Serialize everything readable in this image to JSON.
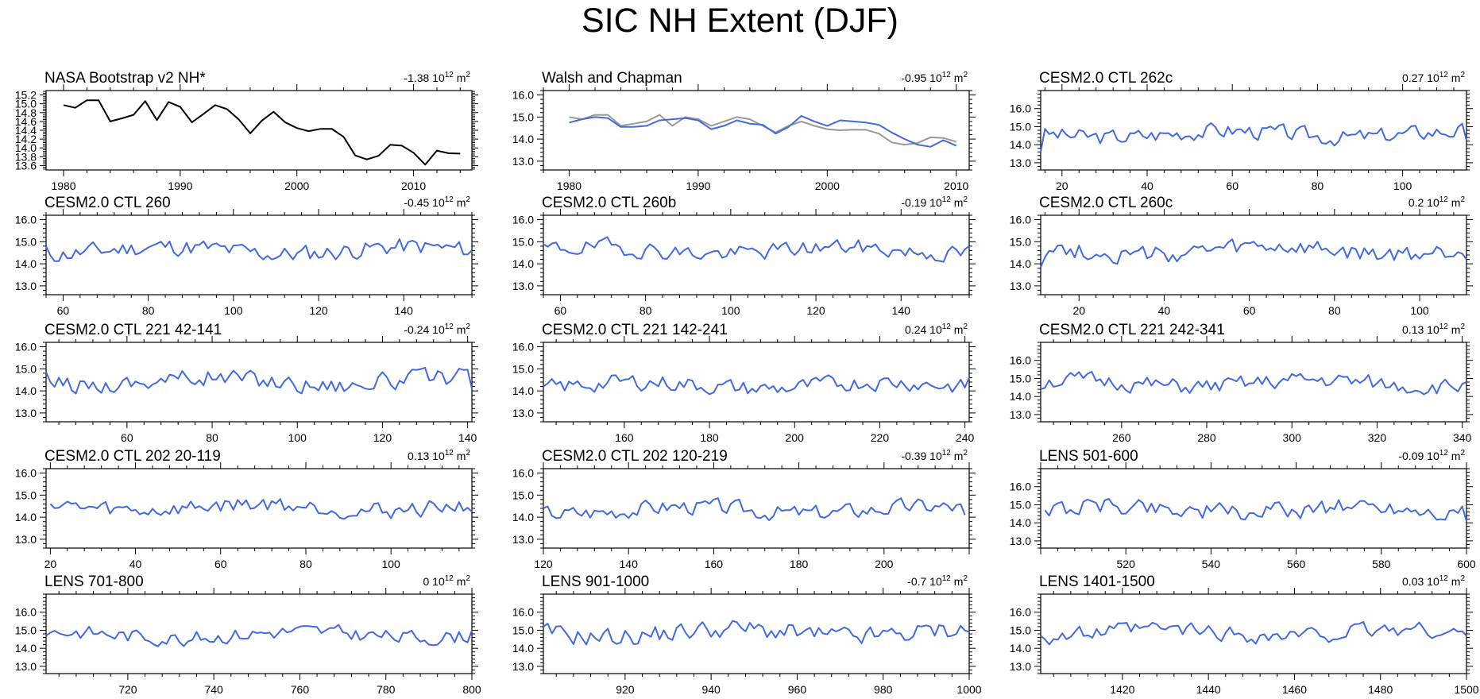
{
  "title": "SIC NH Extent (DJF)",
  "trend_unit": "10",
  "trend_exp": "12",
  "trend_suffix": "m",
  "trend_suffix_exp": "2",
  "colors": {
    "model": "#4169e1",
    "observed": "#000000",
    "reference": "#999999"
  },
  "chart_data": [
    {
      "type": "line",
      "title": "NASA Bootstrap v2 NH*",
      "trend": "-1.38",
      "xlim": [
        1978.5,
        2015
      ],
      "ylim": [
        13.5,
        15.3
      ],
      "xticks": [
        1980,
        1990,
        2000,
        2010
      ],
      "yticks": [
        "15.2",
        "15.0",
        "14.8",
        "14.6",
        "14.4",
        "14.2",
        "14.0",
        "13.8",
        "13.6"
      ],
      "series": [
        {
          "x": [
            1980,
            1981,
            1982,
            1983,
            1984,
            1985,
            1986,
            1987,
            1988,
            1989,
            1990,
            1991,
            1992,
            1993,
            1994,
            1995,
            1996,
            1997,
            1998,
            1999,
            2000,
            2001,
            2002,
            2003,
            2004,
            2005,
            2006,
            2007,
            2008,
            2009,
            2010,
            2011,
            2012,
            2013,
            2014
          ],
          "y": [
            14.97,
            14.91,
            15.08,
            15.08,
            14.6,
            14.67,
            14.75,
            15.06,
            14.63,
            15.04,
            14.93,
            14.58,
            14.77,
            14.97,
            14.88,
            14.65,
            14.33,
            14.62,
            14.82,
            14.58,
            14.45,
            14.38,
            14.43,
            14.43,
            14.25,
            13.83,
            13.74,
            13.82,
            14.07,
            14.05,
            13.89,
            13.62,
            13.94,
            13.88,
            13.87
          ],
          "color": "#000000"
        }
      ]
    },
    {
      "type": "line",
      "title": "Walsh and Chapman",
      "trend": "-0.95",
      "xlim": [
        1978,
        2011
      ],
      "ylim": [
        12.6,
        16.2
      ],
      "xticks": [
        1980,
        1990,
        2000,
        2010
      ],
      "yticks": [
        "16.0",
        "15.0",
        "14.0",
        "13.0"
      ],
      "series": [
        {
          "x": [
            1980,
            1981,
            1982,
            1983,
            1984,
            1985,
            1986,
            1987,
            1988,
            1989,
            1990,
            1991,
            1992,
            1993,
            1994,
            1995,
            1996,
            1997,
            1998,
            1999,
            2000,
            2001,
            2002,
            2003,
            2004,
            2005,
            2006,
            2007,
            2008,
            2009,
            2010
          ],
          "y": [
            15.0,
            14.9,
            15.1,
            15.1,
            14.6,
            14.7,
            14.8,
            15.1,
            14.6,
            15.0,
            14.9,
            14.6,
            14.8,
            15.0,
            14.9,
            14.6,
            14.3,
            14.6,
            14.8,
            14.6,
            14.45,
            14.4,
            14.43,
            14.42,
            14.25,
            13.85,
            13.75,
            13.82,
            14.08,
            14.05,
            13.88
          ],
          "color": "#999999"
        },
        {
          "x": [
            1980,
            1981,
            1982,
            1983,
            1984,
            1985,
            1986,
            1987,
            1988,
            1989,
            1990,
            1991,
            1992,
            1993,
            1994,
            1995,
            1996,
            1997,
            1998,
            1999,
            2000,
            2001,
            2002,
            2003,
            2004,
            2005,
            2006,
            2007,
            2008,
            2009,
            2010
          ],
          "y": [
            14.75,
            14.9,
            15.0,
            14.95,
            14.55,
            14.55,
            14.6,
            14.85,
            14.9,
            14.95,
            14.85,
            14.45,
            14.6,
            14.85,
            14.7,
            14.65,
            14.25,
            14.55,
            15.05,
            14.8,
            14.6,
            14.85,
            14.8,
            14.75,
            14.65,
            14.3,
            14.0,
            13.75,
            13.65,
            13.95,
            13.7
          ],
          "color": "#4169e1"
        }
      ]
    },
    {
      "type": "line",
      "title": "CESM2.0 CTL 262c",
      "trend": "0.27",
      "xlim": [
        15,
        115
      ],
      "ylim": [
        12.6,
        17.0
      ],
      "xticks": [
        20,
        40,
        60,
        80,
        100
      ],
      "yticks": [
        "16.0",
        "15.0",
        "14.0",
        "13.0"
      ],
      "series": [
        {
          "x": [
            15,
            115
          ],
          "y": [
            13.6,
            14.25
          ],
          "seed": 3,
          "base": 14.6,
          "amp": 0.55,
          "color": "#4169e1"
        }
      ]
    },
    {
      "type": "line",
      "title": "CESM2.0 CTL 260",
      "trend": "-0.45",
      "xlim": [
        56,
        156
      ],
      "ylim": [
        12.6,
        16.2
      ],
      "xticks": [
        60,
        80,
        100,
        120,
        140
      ],
      "yticks": [
        "16.0",
        "15.0",
        "14.0",
        "13.0"
      ],
      "series": [
        {
          "x": [
            56,
            156
          ],
          "y": [
            14.8,
            14.6
          ],
          "seed": 11,
          "base": 14.6,
          "amp": 0.5,
          "color": "#4169e1"
        }
      ]
    },
    {
      "type": "line",
      "title": "CESM2.0 CTL 260b",
      "trend": "-0.19",
      "xlim": [
        56,
        156
      ],
      "ylim": [
        12.6,
        16.2
      ],
      "xticks": [
        60,
        80,
        100,
        120,
        140
      ],
      "yticks": [
        "16.0",
        "15.0",
        "14.0",
        "13.0"
      ],
      "series": [
        {
          "x": [
            56,
            156
          ],
          "y": [
            14.9,
            14.8
          ],
          "seed": 19,
          "base": 14.6,
          "amp": 0.45,
          "color": "#4169e1"
        }
      ]
    },
    {
      "type": "line",
      "title": "CESM2.0 CTL 260c",
      "trend": "0.2",
      "xlim": [
        11,
        111
      ],
      "ylim": [
        12.6,
        16.2
      ],
      "xticks": [
        20,
        40,
        60,
        80,
        100
      ],
      "yticks": [
        "16.0",
        "15.0",
        "14.0",
        "13.0"
      ],
      "series": [
        {
          "x": [
            11,
            111
          ],
          "y": [
            13.85,
            14.2
          ],
          "seed": 27,
          "base": 14.55,
          "amp": 0.5,
          "color": "#4169e1"
        }
      ]
    },
    {
      "type": "line",
      "title": "CESM2.0 CTL 221 42-141",
      "trend": "-0.24",
      "xlim": [
        41,
        141
      ],
      "ylim": [
        12.6,
        16.2
      ],
      "xticks": [
        60,
        80,
        100,
        120,
        140
      ],
      "yticks": [
        "16.0",
        "15.0",
        "14.0",
        "13.0"
      ],
      "series": [
        {
          "x": [
            41,
            141
          ],
          "y": [
            14.85,
            14.1
          ],
          "seed": 35,
          "base": 14.45,
          "amp": 0.5,
          "color": "#4169e1"
        }
      ]
    },
    {
      "type": "line",
      "title": "CESM2.0 CTL 221 142-241",
      "trend": "0.24",
      "xlim": [
        141,
        241
      ],
      "ylim": [
        12.6,
        16.2
      ],
      "xticks": [
        160,
        180,
        200,
        220,
        240
      ],
      "yticks": [
        "16.0",
        "15.0",
        "14.0",
        "13.0"
      ],
      "series": [
        {
          "x": [
            141,
            241
          ],
          "y": [
            14.2,
            14.6
          ],
          "seed": 43,
          "base": 14.25,
          "amp": 0.45,
          "color": "#4169e1"
        }
      ]
    },
    {
      "type": "line",
      "title": "CESM2.0 CTL 221 242-341",
      "trend": "0.13",
      "xlim": [
        241,
        341
      ],
      "ylim": [
        12.6,
        17.0
      ],
      "xticks": [
        260,
        280,
        300,
        320,
        340
      ],
      "yticks": [
        "16.0",
        "15.0",
        "14.0",
        "13.0"
      ],
      "series": [
        {
          "x": [
            241,
            341
          ],
          "y": [
            14.4,
            14.8
          ],
          "seed": 51,
          "base": 14.7,
          "amp": 0.55,
          "color": "#4169e1"
        }
      ]
    },
    {
      "type": "line",
      "title": "CESM2.0 CTL 202 20-119",
      "trend": "0.13",
      "xlim": [
        19,
        119
      ],
      "ylim": [
        12.6,
        16.2
      ],
      "xticks": [
        20,
        40,
        60,
        80,
        100
      ],
      "yticks": [
        "16.0",
        "15.0",
        "14.0",
        "13.0"
      ],
      "series": [
        {
          "x": [
            20,
            119
          ],
          "y": [
            14.6,
            14.25
          ],
          "seed": 59,
          "base": 14.45,
          "amp": 0.45,
          "color": "#4169e1"
        }
      ]
    },
    {
      "type": "line",
      "title": "CESM2.0 CTL 202 120-219",
      "trend": "-0.39",
      "xlim": [
        120,
        220
      ],
      "ylim": [
        12.6,
        16.2
      ],
      "xticks": [
        120,
        140,
        160,
        180,
        200
      ],
      "yticks": [
        "16.0",
        "15.0",
        "14.0",
        "13.0"
      ],
      "series": [
        {
          "x": [
            120,
            219
          ],
          "y": [
            14.4,
            14.1
          ],
          "seed": 67,
          "base": 14.35,
          "amp": 0.45,
          "color": "#4169e1"
        }
      ]
    },
    {
      "type": "line",
      "title": "LENS 501-600",
      "trend": "-0.09",
      "xlim": [
        500,
        600
      ],
      "ylim": [
        12.6,
        17.0
      ],
      "xticks": [
        520,
        540,
        560,
        580,
        600
      ],
      "yticks": [
        "16.0",
        "15.0",
        "14.0",
        "13.0"
      ],
      "series": [
        {
          "x": [
            501,
            600
          ],
          "y": [
            14.7,
            14.1
          ],
          "seed": 75,
          "base": 14.75,
          "amp": 0.6,
          "color": "#4169e1"
        }
      ]
    },
    {
      "type": "line",
      "title": "LENS 701-800",
      "trend": "0",
      "xlim": [
        701,
        800
      ],
      "ylim": [
        12.6,
        17.0
      ],
      "xticks": [
        720,
        740,
        760,
        780,
        800
      ],
      "yticks": [
        "16.0",
        "15.0",
        "14.0",
        "13.0"
      ],
      "series": [
        {
          "x": [
            701,
            800
          ],
          "y": [
            14.7,
            15.0
          ],
          "seed": 83,
          "base": 14.75,
          "amp": 0.5,
          "color": "#4169e1"
        }
      ]
    },
    {
      "type": "line",
      "title": "LENS 901-1000",
      "trend": "-0.7",
      "xlim": [
        901,
        1000
      ],
      "ylim": [
        12.6,
        17.0
      ],
      "xticks": [
        920,
        940,
        960,
        980,
        1000
      ],
      "yticks": [
        "16.0",
        "15.0",
        "14.0",
        "13.0"
      ],
      "series": [
        {
          "x": [
            901,
            1000
          ],
          "y": [
            15.2,
            14.9
          ],
          "seed": 91,
          "base": 14.85,
          "amp": 0.65,
          "color": "#4169e1"
        }
      ]
    },
    {
      "type": "line",
      "title": "LENS 1401-1500",
      "trend": "0.03",
      "xlim": [
        1401,
        1500
      ],
      "ylim": [
        12.6,
        17.0
      ],
      "xticks": [
        1420,
        1440,
        1460,
        1480,
        1500
      ],
      "yticks": [
        "16.0",
        "15.0",
        "14.0",
        "13.0"
      ],
      "series": [
        {
          "x": [
            1401,
            1500
          ],
          "y": [
            14.7,
            14.7
          ],
          "seed": 99,
          "base": 14.85,
          "amp": 0.55,
          "color": "#4169e1"
        }
      ]
    }
  ]
}
